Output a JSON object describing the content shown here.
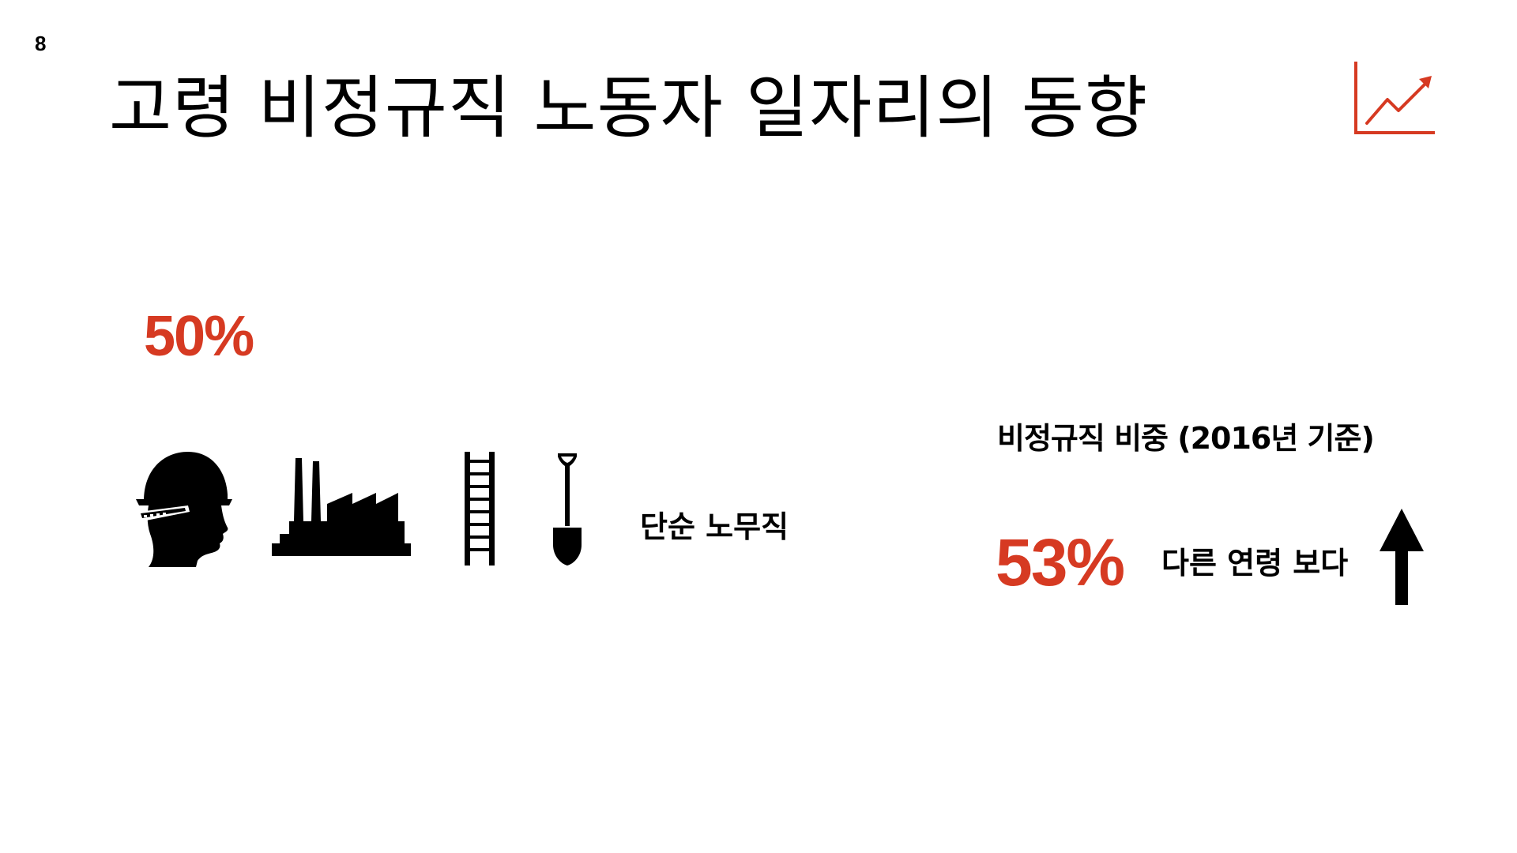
{
  "page": {
    "number": "8"
  },
  "header": {
    "title": "고령 비정규직 노동자 일자리의 동향",
    "title_icon": "trend-chart-icon"
  },
  "left_panel": {
    "stat": "50%",
    "icons": [
      "hardhat-worker-icon",
      "factory-icon",
      "ladder-icon",
      "shovel-icon"
    ],
    "category": "단순 노무직"
  },
  "right_panel": {
    "heading": "비정규직 비중 (2016년 기준)",
    "stat": "53%",
    "comparison": "다른 연령 보다",
    "trend_icon": "arrow-up-icon"
  },
  "colors": {
    "accent": "#d63a22",
    "text": "#000000",
    "background": "#ffffff"
  }
}
